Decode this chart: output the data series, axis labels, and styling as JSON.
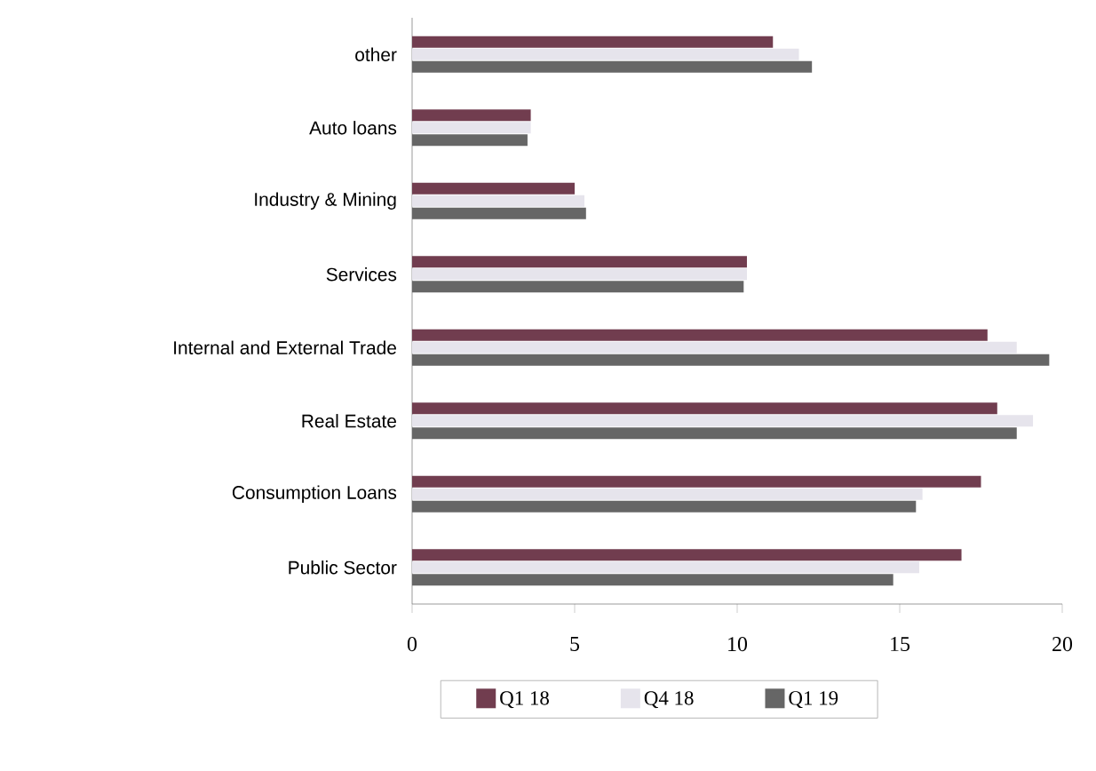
{
  "chart_data": {
    "type": "bar",
    "orientation": "horizontal",
    "categories": [
      "other",
      "Auto loans",
      "Industry & Mining",
      "Services",
      "Internal and External Trade",
      "Real Estate",
      "Consumption Loans",
      "Public Sector"
    ],
    "series": [
      {
        "name": "Q1  18",
        "color": "#713d4f",
        "values": [
          11.1,
          3.65,
          5.0,
          10.3,
          17.7,
          18.0,
          17.5,
          16.9
        ]
      },
      {
        "name": "Q4  18",
        "color": "#e6e4ec",
        "values": [
          11.9,
          3.65,
          5.3,
          10.3,
          18.6,
          19.1,
          15.7,
          15.6
        ]
      },
      {
        "name": "Q1  19",
        "color": "#666666",
        "values": [
          12.3,
          3.55,
          5.35,
          10.2,
          19.6,
          18.6,
          15.5,
          14.8
        ]
      }
    ],
    "xlim": [
      0,
      20
    ],
    "xticks": [
      0,
      5,
      10,
      15,
      20
    ],
    "grid": false,
    "legend": "bottom"
  }
}
